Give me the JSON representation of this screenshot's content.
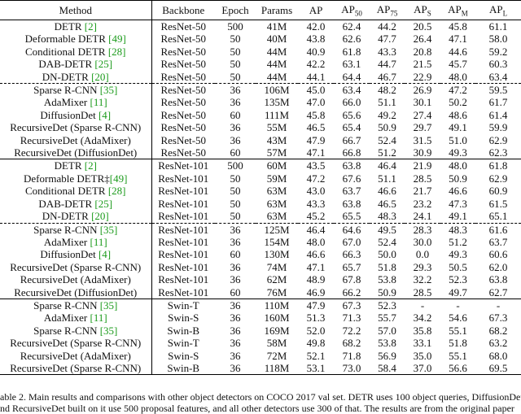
{
  "table": {
    "header": [
      {
        "text": "Method"
      },
      {
        "text": "Backbone"
      },
      {
        "text": "Epoch"
      },
      {
        "text": "Params"
      },
      {
        "text": "AP"
      },
      {
        "text": "AP",
        "sub": "50"
      },
      {
        "text": "AP",
        "sub": "75"
      },
      {
        "text": "AP",
        "sub": "S"
      },
      {
        "text": "AP",
        "sub": "M"
      },
      {
        "text": "AP",
        "sub": "L"
      }
    ],
    "groups": [
      [
        [
          {
            "method": "DETR",
            "cite": "[2]",
            "cells": [
              "ResNet-50",
              "500",
              "41M",
              "42.0",
              "62.4",
              "44.2",
              "20.5",
              "45.8",
              "61.1"
            ]
          },
          {
            "method": "Deformable DETR",
            "cite": "[49]",
            "cells": [
              "ResNet-50",
              "50",
              "40M",
              "43.8",
              "62.6",
              "47.7",
              "26.4",
              "47.1",
              "58.0"
            ]
          },
          {
            "method": "Conditional DETR",
            "cite": "[28]",
            "cells": [
              "ResNet-50",
              "50",
              "44M",
              "40.9",
              "61.8",
              "43.3",
              "20.8",
              "44.6",
              "59.2"
            ]
          },
          {
            "method": "DAB-DETR",
            "cite": "[25]",
            "cells": [
              "ResNet-50",
              "50",
              "44M",
              "42.2",
              "63.1",
              "44.7",
              "21.5",
              "45.7",
              "60.3"
            ]
          },
          {
            "method": "DN-DETR",
            "cite": "[20]",
            "cells": [
              "ResNet-50",
              "50",
              "44M",
              "44.1",
              "64.4",
              "46.7",
              "22.9",
              "48.0",
              "63.4"
            ]
          }
        ],
        [
          {
            "method": "Sparse R-CNN",
            "cite": "[35]",
            "cells": [
              "ResNet-50",
              "36",
              "106M",
              "45.0",
              "63.4",
              "48.2",
              "26.9",
              "47.2",
              "59.5"
            ]
          },
          {
            "method": "AdaMixer",
            "cite": "[11]",
            "cells": [
              "ResNet-50",
              "36",
              "135M",
              "47.0",
              "66.0",
              "51.1",
              "30.1",
              "50.2",
              "61.7"
            ]
          },
          {
            "method": "DiffusionDet",
            "cite": "[4]",
            "cells": [
              "ResNet-50",
              "60",
              "111M",
              "45.8",
              "65.6",
              "49.2",
              "27.4",
              "48.6",
              "61.4"
            ]
          },
          {
            "method": "RecursiveDet (Sparse R-CNN)",
            "cells": [
              "ResNet-50",
              "36",
              "55M",
              "46.5",
              "65.4",
              "50.9",
              "29.7",
              "49.1",
              "59.9"
            ]
          },
          {
            "method": "RecursiveDet (AdaMixer)",
            "cells": [
              "ResNet-50",
              "36",
              "43M",
              "47.9",
              "66.7",
              "52.4",
              "31.5",
              "51.0",
              "62.9"
            ]
          },
          {
            "method": "RecursiveDet (DiffusionDet)",
            "cells": [
              "ResNet-50",
              "60",
              "57M",
              "47.1",
              "66.8",
              "51.2",
              "30.9",
              "49.3",
              "62.3"
            ]
          }
        ]
      ],
      [
        [
          {
            "method": "DETR",
            "cite": "[2]",
            "cells": [
              "ResNet-101",
              "500",
              "60M",
              "43.5",
              "63.8",
              "46.4",
              "21.9",
              "48.0",
              "61.8"
            ]
          },
          {
            "method": "Deformable DETR‡",
            "cite": "[49]",
            "cells": [
              "ResNet-101",
              "50",
              "59M",
              "47.2",
              "67.6",
              "51.1",
              "28.5",
              "50.9",
              "62.9"
            ]
          },
          {
            "method": "Conditional DETR",
            "cite": "[28]",
            "cells": [
              "ResNet-101",
              "50",
              "63M",
              "43.0",
              "63.7",
              "46.6",
              "21.7",
              "46.6",
              "60.9"
            ]
          },
          {
            "method": "DAB-DETR",
            "cite": "[25]",
            "cells": [
              "ResNet-101",
              "50",
              "63M",
              "43.3",
              "63.8",
              "46.5",
              "23.2",
              "47.3",
              "61.5"
            ]
          },
          {
            "method": "DN-DETR",
            "cite": "[20]",
            "cells": [
              "ResNet-101",
              "50",
              "63M",
              "45.2",
              "65.5",
              "48.3",
              "24.1",
              "49.1",
              "65.1"
            ]
          }
        ],
        [
          {
            "method": "Sparse R-CNN",
            "cite": "[35]",
            "cells": [
              "ResNet-101",
              "36",
              "125M",
              "46.4",
              "64.6",
              "49.5",
              "28.3",
              "48.3",
              "61.6"
            ]
          },
          {
            "method": "AdaMixer",
            "cite": "[11]",
            "cells": [
              "ResNet-101",
              "36",
              "154M",
              "48.0",
              "67.0",
              "52.4",
              "30.0",
              "51.2",
              "63.7"
            ]
          },
          {
            "method": "DiffusionDet",
            "cite": "[4]",
            "cells": [
              "ResNet-101",
              "60",
              "130M",
              "46.6",
              "66.3",
              "50.0",
              "0.0",
              "49.3",
              "60.6"
            ]
          },
          {
            "method": "RecursiveDet (Sparse R-CNN)",
            "cells": [
              "ResNet-101",
              "36",
              "74M",
              "47.1",
              "65.7",
              "51.8",
              "29.3",
              "50.5",
              "62.0"
            ]
          },
          {
            "method": "RecursiveDet (AdaMixer)",
            "cells": [
              "ResNet-101",
              "36",
              "62M",
              "48.9",
              "67.8",
              "53.8",
              "32.2",
              "52.3",
              "63.8"
            ]
          },
          {
            "method": "RecursiveDet (DiffusionDet)",
            "cells": [
              "ResNet-101",
              "60",
              "76M",
              "46.9",
              "66.2",
              "50.9",
              "28.5",
              "49.7",
              "62.7"
            ]
          }
        ]
      ],
      [
        [
          {
            "method": "Sparse R-CNN",
            "cite": "[35]",
            "cells": [
              "Swin-T",
              "36",
              "110M",
              "47.9",
              "67.3",
              "52.3",
              "-",
              "-",
              "-"
            ]
          },
          {
            "method": "AdaMixer",
            "cite": "[11]",
            "cells": [
              "Swin-S",
              "36",
              "160M",
              "51.3",
              "71.3",
              "55.7",
              "34.2",
              "54.6",
              "67.3"
            ]
          },
          {
            "method": "Sparse R-CNN",
            "cite": "[35]",
            "cells": [
              "Swin-B",
              "36",
              "169M",
              "52.0",
              "72.2",
              "57.0",
              "35.8",
              "55.1",
              "68.2"
            ]
          },
          {
            "method": "RecursiveDet (Sparse R-CNN)",
            "cells": [
              "Swin-T",
              "36",
              "58M",
              "49.8",
              "68.2",
              "53.8",
              "33.1",
              "51.8",
              "63.2"
            ]
          },
          {
            "method": "RecursiveDet (AdaMixer)",
            "cells": [
              "Swin-S",
              "36",
              "72M",
              "52.1",
              "71.8",
              "56.9",
              "35.0",
              "55.1",
              "68.0"
            ]
          },
          {
            "method": "RecursiveDet (Sparse R-CNN)",
            "cells": [
              "Swin-B",
              "36",
              "118M",
              "53.1",
              "73.0",
              "58.4",
              "37.0",
              "56.6",
              "69.5"
            ]
          }
        ]
      ]
    ]
  },
  "caption": [
    "able 2. Main results and comparisons with other object detectors on COCO 2017 val set. DETR uses 100 object queries, DiffusionDet",
    "nd RecursiveDet built on it use 500 proposal features, and all other detectors use 300 of that. The results are from the original paper"
  ]
}
